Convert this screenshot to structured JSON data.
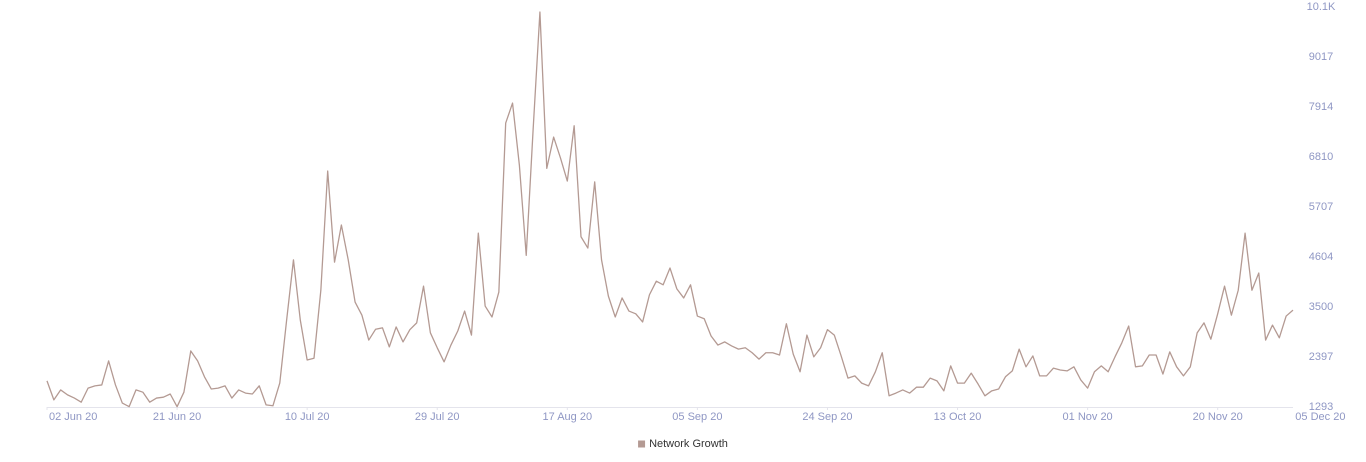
{
  "chart_data": {
    "type": "line",
    "x": [
      "2020-06-02",
      "2020-06-03",
      "2020-06-04",
      "2020-06-05",
      "2020-06-06",
      "2020-06-07",
      "2020-06-08",
      "2020-06-09",
      "2020-06-10",
      "2020-06-11",
      "2020-06-12",
      "2020-06-13",
      "2020-06-14",
      "2020-06-15",
      "2020-06-16",
      "2020-06-17",
      "2020-06-18",
      "2020-06-19",
      "2020-06-20",
      "2020-06-21",
      "2020-06-22",
      "2020-06-23",
      "2020-06-24",
      "2020-06-25",
      "2020-06-26",
      "2020-06-27",
      "2020-06-28",
      "2020-06-29",
      "2020-06-30",
      "2020-07-01",
      "2020-07-02",
      "2020-07-03",
      "2020-07-04",
      "2020-07-05",
      "2020-07-06",
      "2020-07-07",
      "2020-07-08",
      "2020-07-09",
      "2020-07-10",
      "2020-07-11",
      "2020-07-12",
      "2020-07-13",
      "2020-07-14",
      "2020-07-15",
      "2020-07-16",
      "2020-07-17",
      "2020-07-18",
      "2020-07-19",
      "2020-07-20",
      "2020-07-21",
      "2020-07-22",
      "2020-07-23",
      "2020-07-24",
      "2020-07-25",
      "2020-07-26",
      "2020-07-27",
      "2020-07-28",
      "2020-07-29",
      "2020-07-30",
      "2020-07-31",
      "2020-08-01",
      "2020-08-02",
      "2020-08-03",
      "2020-08-04",
      "2020-08-05",
      "2020-08-06",
      "2020-08-07",
      "2020-08-08",
      "2020-08-09",
      "2020-08-10",
      "2020-08-11",
      "2020-08-12",
      "2020-08-13",
      "2020-08-14",
      "2020-08-15",
      "2020-08-16",
      "2020-08-17",
      "2020-08-18",
      "2020-08-19",
      "2020-08-20",
      "2020-08-21",
      "2020-08-22",
      "2020-08-23",
      "2020-08-24",
      "2020-08-25",
      "2020-08-26",
      "2020-08-27",
      "2020-08-28",
      "2020-08-29",
      "2020-08-30",
      "2020-08-31",
      "2020-09-01",
      "2020-09-02",
      "2020-09-03",
      "2020-09-04",
      "2020-09-05",
      "2020-09-06",
      "2020-09-07",
      "2020-09-08",
      "2020-09-09",
      "2020-09-10",
      "2020-09-11",
      "2020-09-12",
      "2020-09-13",
      "2020-09-14",
      "2020-09-15",
      "2020-09-16",
      "2020-09-17",
      "2020-09-18",
      "2020-09-19",
      "2020-09-20",
      "2020-09-21",
      "2020-09-22",
      "2020-09-23",
      "2020-09-24",
      "2020-09-25",
      "2020-09-26",
      "2020-09-27",
      "2020-09-28",
      "2020-09-29",
      "2020-09-30",
      "2020-10-01",
      "2020-10-02",
      "2020-10-03",
      "2020-10-04",
      "2020-10-05",
      "2020-10-06",
      "2020-10-07",
      "2020-10-08",
      "2020-10-09",
      "2020-10-10",
      "2020-10-11",
      "2020-10-12",
      "2020-10-13",
      "2020-10-14",
      "2020-10-15",
      "2020-10-16",
      "2020-10-17",
      "2020-10-18",
      "2020-10-19",
      "2020-10-20",
      "2020-10-21",
      "2020-10-22",
      "2020-10-23",
      "2020-10-24",
      "2020-10-25",
      "2020-10-26",
      "2020-10-27",
      "2020-10-28",
      "2020-10-29",
      "2020-10-30",
      "2020-10-31",
      "2020-11-01",
      "2020-11-02",
      "2020-11-03",
      "2020-11-04",
      "2020-11-05",
      "2020-11-06",
      "2020-11-07",
      "2020-11-08",
      "2020-11-09",
      "2020-11-10",
      "2020-11-11",
      "2020-11-12",
      "2020-11-13",
      "2020-11-14",
      "2020-11-15",
      "2020-11-16",
      "2020-11-17",
      "2020-11-18",
      "2020-11-19",
      "2020-11-20",
      "2020-11-21",
      "2020-11-22",
      "2020-11-23",
      "2020-11-24",
      "2020-11-25",
      "2020-11-26",
      "2020-11-27",
      "2020-11-28",
      "2020-11-29",
      "2020-11-30",
      "2020-12-01"
    ],
    "series": [
      {
        "name": "Network Growth",
        "color": "#b49a93",
        "values": [
          1870,
          1450,
          1670,
          1560,
          1490,
          1400,
          1710,
          1760,
          1780,
          2310,
          1780,
          1380,
          1300,
          1670,
          1620,
          1400,
          1490,
          1510,
          1580,
          1300,
          1620,
          2530,
          2310,
          1960,
          1690,
          1710,
          1760,
          1490,
          1670,
          1600,
          1580,
          1760,
          1340,
          1320,
          1820,
          3210,
          4540,
          3210,
          2330,
          2370,
          3870,
          6500,
          4490,
          5310,
          4540,
          3610,
          3320,
          2770,
          3010,
          3040,
          2620,
          3060,
          2730,
          3000,
          3150,
          3960,
          2930,
          2600,
          2290,
          2660,
          2970,
          3410,
          2880,
          5130,
          3520,
          3280,
          3830,
          7560,
          8000,
          6630,
          4640,
          7400,
          10010,
          6560,
          7250,
          6790,
          6280,
          7500,
          5050,
          4800,
          6260,
          4540,
          3740,
          3280,
          3700,
          3410,
          3350,
          3170,
          3770,
          4070,
          3990,
          4360,
          3900,
          3700,
          3990,
          3300,
          3240,
          2860,
          2660,
          2730,
          2640,
          2570,
          2600,
          2490,
          2350,
          2490,
          2490,
          2440,
          3130,
          2460,
          2070,
          2880,
          2400,
          2600,
          3000,
          2880,
          2420,
          1930,
          1980,
          1820,
          1760,
          2070,
          2490,
          1540,
          1600,
          1670,
          1600,
          1730,
          1730,
          1930,
          1870,
          1650,
          2200,
          1820,
          1820,
          2040,
          1800,
          1540,
          1650,
          1690,
          1960,
          2090,
          2570,
          2180,
          2420,
          1980,
          1980,
          2150,
          2110,
          2090,
          2180,
          1890,
          1710,
          2070,
          2200,
          2070,
          2400,
          2710,
          3080,
          2180,
          2200,
          2440,
          2440,
          2020,
          2510,
          2180,
          1980,
          2180,
          2930,
          3150,
          2790,
          3350,
          3960,
          3320,
          3870,
          5130,
          3870,
          4250,
          2770,
          3100,
          2820,
          3300,
          3430
        ]
      }
    ],
    "xlim": [
      "2020-06-02",
      "2020-12-01"
    ],
    "xticks": [
      {
        "value": "2020-06-02",
        "label": "02 Jun 20"
      },
      {
        "value": "2020-06-21",
        "label": "21 Jun 20"
      },
      {
        "value": "2020-07-10",
        "label": "10 Jul 20"
      },
      {
        "value": "2020-07-29",
        "label": "29 Jul 20"
      },
      {
        "value": "2020-08-17",
        "label": "17 Aug 20"
      },
      {
        "value": "2020-09-05",
        "label": "05 Sep 20"
      },
      {
        "value": "2020-09-24",
        "label": "24 Sep 20"
      },
      {
        "value": "2020-10-13",
        "label": "13 Oct 20"
      },
      {
        "value": "2020-11-01",
        "label": "01 Nov 20"
      },
      {
        "value": "2020-11-20",
        "label": "20 Nov 20"
      },
      {
        "value": "2020-12-05",
        "label": "05 Dec 20"
      }
    ],
    "ylim": [
      1293,
      10121
    ],
    "yticks": [
      1293,
      2397,
      3500,
      4604,
      5707,
      6810,
      7914,
      9017,
      {
        "value": 10121,
        "label": "10.1K"
      }
    ],
    "grid": false
  }
}
